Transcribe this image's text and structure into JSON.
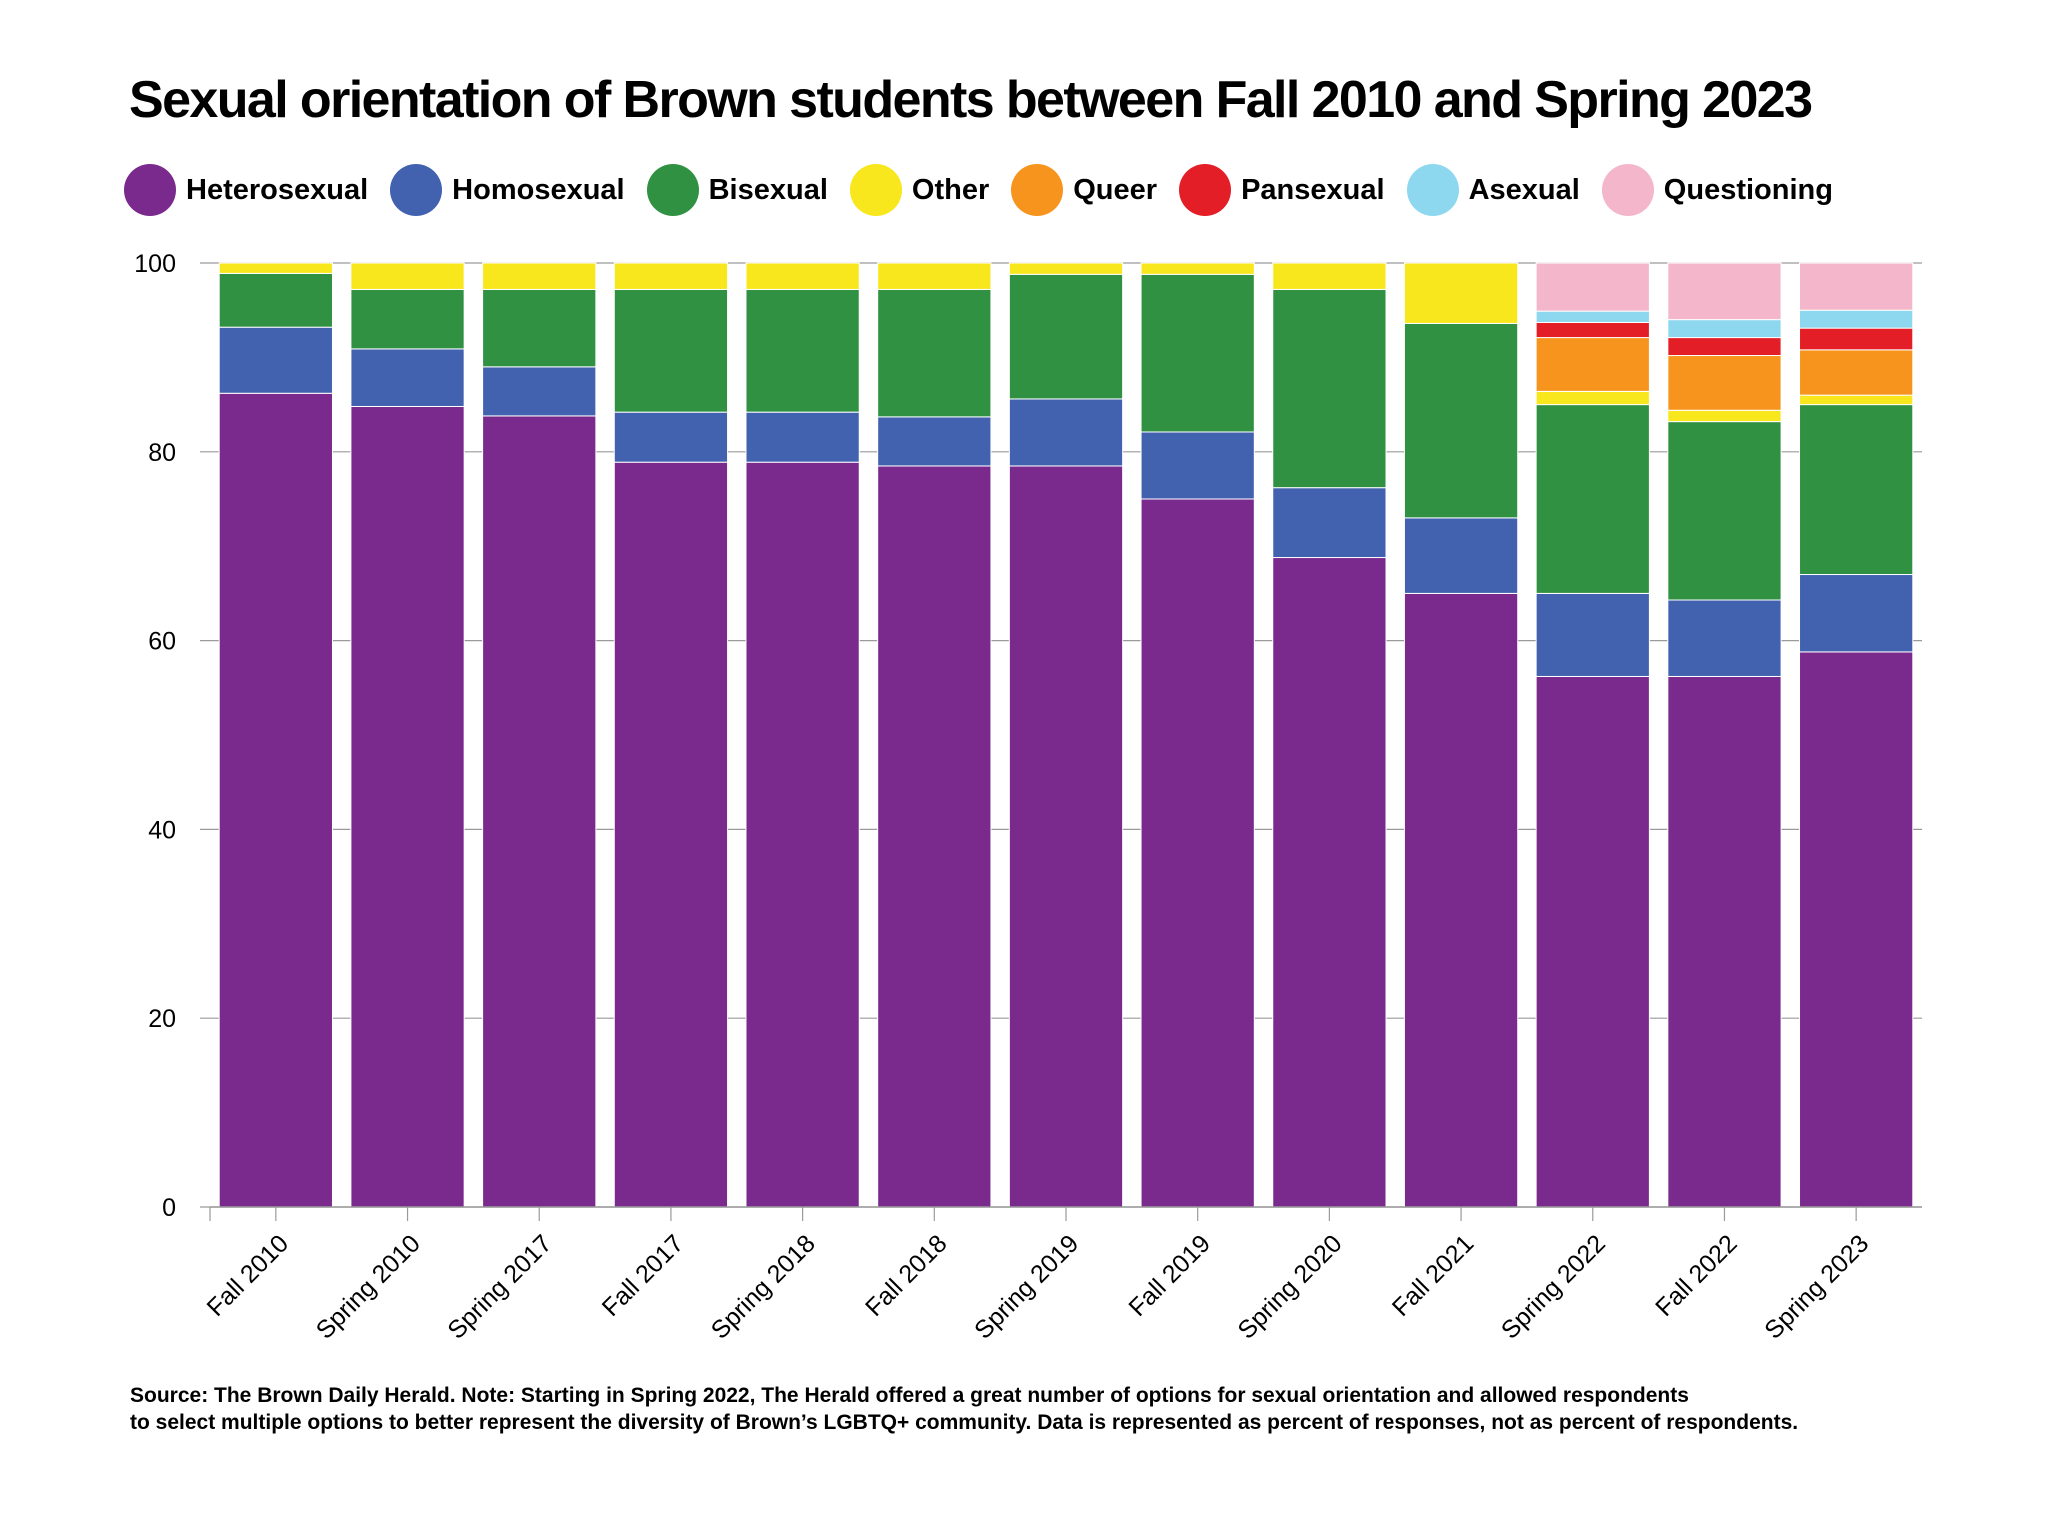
{
  "chart_data": {
    "type": "bar",
    "stacked": true,
    "title": "Sexual orientation of Brown students between Fall 2010 and Spring 2023",
    "xlabel": "",
    "ylabel": "",
    "ylim": [
      0,
      100
    ],
    "yticks": [
      "0",
      "20",
      "40",
      "60",
      "80",
      "100"
    ],
    "grid": true,
    "legend_position": "top",
    "categories": [
      "Fall 2010",
      "Spring 2010",
      "Spring 2017",
      "Fall 2017",
      "Spring 2018",
      "Fall 2018",
      "Spring 2019",
      "Fall 2019",
      "Spring 2020",
      "Fall 2021",
      "Spring 2022",
      "Fall 2022",
      "Spring 2023"
    ],
    "series": [
      {
        "name": "Heterosexual",
        "color": "#7a2a8c",
        "values": [
          86.2,
          84.8,
          83.8,
          78.9,
          78.9,
          78.5,
          78.5,
          75.0,
          68.8,
          65.0,
          56.2,
          56.2,
          58.8
        ]
      },
      {
        "name": "Homosexual",
        "color": "#4262b0",
        "values": [
          7.0,
          6.1,
          5.2,
          5.3,
          5.3,
          5.2,
          7.1,
          7.1,
          7.4,
          8.0,
          8.8,
          8.1,
          8.2
        ]
      },
      {
        "name": "Bisexual",
        "color": "#319142",
        "values": [
          5.7,
          6.3,
          8.2,
          13.0,
          13.0,
          13.5,
          13.2,
          16.7,
          21.0,
          20.6,
          20.0,
          18.9,
          18.0
        ]
      },
      {
        "name": "Other",
        "color": "#f8e71c",
        "values": [
          1.1,
          2.8,
          2.8,
          2.8,
          2.8,
          2.8,
          1.2,
          1.2,
          2.8,
          6.4,
          1.4,
          1.2,
          1.0
        ]
      },
      {
        "name": "Queer",
        "color": "#f7941d",
        "values": [
          0,
          0,
          0,
          0,
          0,
          0,
          0,
          0,
          0,
          0,
          5.7,
          5.8,
          4.8
        ]
      },
      {
        "name": "Pansexual",
        "color": "#e31e26",
        "values": [
          0,
          0,
          0,
          0,
          0,
          0,
          0,
          0,
          0,
          0,
          1.6,
          1.9,
          2.3
        ]
      },
      {
        "name": "Asexual",
        "color": "#8dd7ef",
        "values": [
          0,
          0,
          0,
          0,
          0,
          0,
          0,
          0,
          0,
          0,
          1.2,
          1.9,
          1.9
        ]
      },
      {
        "name": "Questioning",
        "color": "#f4b6cb",
        "values": [
          0,
          0,
          0,
          0,
          0,
          0,
          0,
          0,
          0,
          0,
          5.1,
          6.0,
          5.0
        ]
      }
    ]
  },
  "note": {
    "line1": "Source: The Brown Daily Herald. Note: Starting in Spring 2022, The Herald offered a great number of options for sexual orientation and allowed respondents",
    "line2": "to select multiple options to better represent the diversity of Brown’s LGBTQ+ community. Data is represented as percent of responses, not as percent of respondents."
  }
}
